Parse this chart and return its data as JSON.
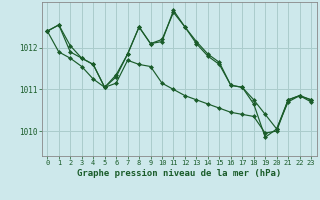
{
  "background_color": "#cde8eb",
  "grid_color": "#aacccc",
  "line_color": "#1a5c2a",
  "title": "Graphe pression niveau de la mer (hPa)",
  "xlim": [
    -0.5,
    23.5
  ],
  "ylim": [
    1009.4,
    1013.1
  ],
  "yticks": [
    1010,
    1011,
    1012
  ],
  "xticks": [
    0,
    1,
    2,
    3,
    4,
    5,
    6,
    7,
    8,
    9,
    10,
    11,
    12,
    13,
    14,
    15,
    16,
    17,
    18,
    19,
    20,
    21,
    22,
    23
  ],
  "series": [
    {
      "x": [
        0,
        1,
        2,
        3,
        4,
        5,
        6,
        7,
        8,
        9,
        10,
        11,
        12,
        13,
        14,
        15,
        16,
        17,
        18,
        19,
        20,
        21,
        22,
        23
      ],
      "y": [
        1012.4,
        1012.55,
        1012.05,
        1011.75,
        1011.6,
        1011.05,
        1011.35,
        1011.85,
        1012.5,
        1012.1,
        1012.2,
        1012.85,
        1012.5,
        1012.15,
        1011.85,
        1011.65,
        1011.1,
        1011.05,
        1010.75,
        1010.4,
        1010.05,
        1010.75,
        1010.85,
        1010.75
      ]
    },
    {
      "x": [
        0,
        1,
        2,
        3,
        4,
        5,
        6,
        7,
        8,
        9,
        10,
        11,
        12,
        13,
        14,
        15,
        16,
        17,
        18,
        19,
        20,
        21,
        22,
        23
      ],
      "y": [
        1012.4,
        1011.9,
        1011.75,
        1011.55,
        1011.25,
        1011.05,
        1011.15,
        1011.7,
        1011.6,
        1011.55,
        1011.15,
        1011.0,
        1010.85,
        1010.75,
        1010.65,
        1010.55,
        1010.45,
        1010.4,
        1010.35,
        1009.95,
        1010.0,
        1010.75,
        1010.85,
        1010.75
      ]
    },
    {
      "x": [
        0,
        1,
        2,
        3,
        4,
        5,
        6,
        7,
        8,
        9,
        10,
        11,
        12,
        13,
        14,
        15,
        16,
        17,
        18,
        19,
        20,
        21,
        22,
        23
      ],
      "y": [
        1012.4,
        1012.55,
        1011.9,
        1011.75,
        1011.6,
        1011.05,
        1011.3,
        1011.85,
        1012.5,
        1012.1,
        1012.15,
        1012.9,
        1012.5,
        1012.1,
        1011.8,
        1011.6,
        1011.1,
        1011.05,
        1010.65,
        1009.85,
        1010.05,
        1010.7,
        1010.85,
        1010.7
      ]
    }
  ]
}
